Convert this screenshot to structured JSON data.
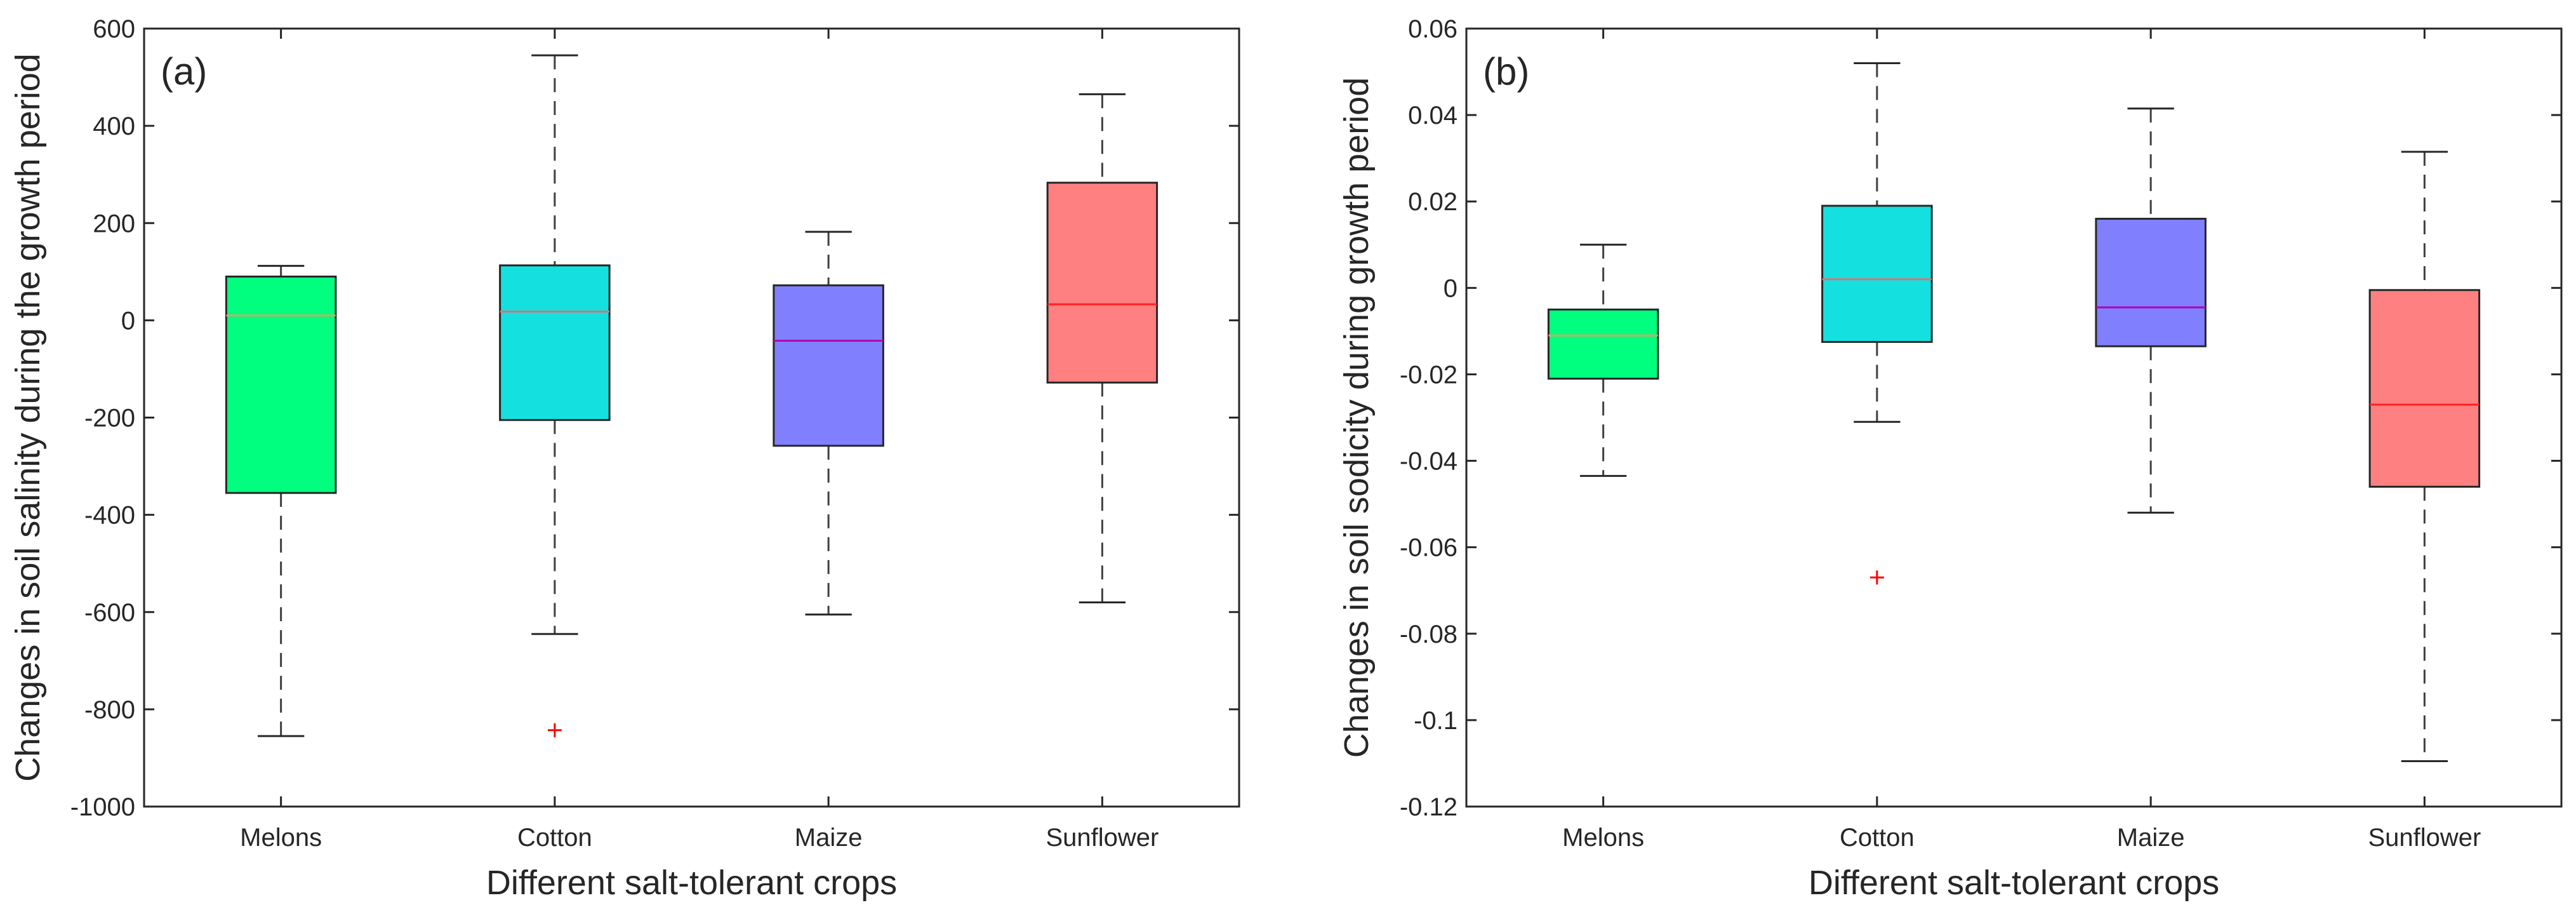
{
  "chart_data": [
    {
      "type": "boxplot",
      "panel_label": "(a)",
      "xlabel": "Different salt-tolerant crops",
      "ylabel": "Changes in soil salinity during the growth period",
      "ylim": [
        -1000,
        600
      ],
      "yticks": [
        600,
        400,
        200,
        0,
        -200,
        -400,
        -600,
        -800,
        -1000
      ],
      "ytick_labels": [
        "600",
        "400",
        "200",
        "0",
        "-200",
        "-400",
        "-600",
        "-800",
        "-1000"
      ],
      "categories": [
        "Melons",
        "Cotton",
        "Maize",
        "Sunflower"
      ],
      "boxes": [
        {
          "name": "Melons",
          "whisker_low": -855,
          "q1": -355,
          "median": 10,
          "q3": 90,
          "whisker_high": 112,
          "outliers": [],
          "color": "#00ff7f",
          "median_color": "#e0a060"
        },
        {
          "name": "Cotton",
          "whisker_low": -645,
          "q1": -205,
          "median": 18,
          "q3": 113,
          "whisker_high": 545,
          "outliers": [
            -843
          ],
          "color": "#14e0e0",
          "median_color": "#e07070"
        },
        {
          "name": "Maize",
          "whisker_low": -605,
          "q1": -258,
          "median": -42,
          "q3": 72,
          "whisker_high": 182,
          "outliers": [],
          "color": "#8080ff",
          "median_color": "#b000b0"
        },
        {
          "name": "Sunflower",
          "whisker_low": -580,
          "q1": -128,
          "median": 33,
          "q3": 283,
          "whisker_high": 465,
          "outliers": [],
          "color": "#ff8080",
          "median_color": "#ff2020"
        }
      ]
    },
    {
      "type": "boxplot",
      "panel_label": "(b)",
      "xlabel": "Different salt-tolerant crops",
      "ylabel": "Changes in soil sodicity during growth period",
      "ylim": [
        -0.12,
        0.06
      ],
      "yticks": [
        0.06,
        0.04,
        0.02,
        0,
        -0.02,
        -0.04,
        -0.06,
        -0.08,
        -0.1,
        -0.12
      ],
      "ytick_labels": [
        "0.06",
        "0.04",
        "0.02",
        "0",
        "-0.02",
        "-0.04",
        "-0.06",
        "-0.08",
        "-0.1",
        "-0.12"
      ],
      "categories": [
        "Melons",
        "Cotton",
        "Maize",
        "Sunflower"
      ],
      "boxes": [
        {
          "name": "Melons",
          "whisker_low": -0.0435,
          "q1": -0.021,
          "median": -0.011,
          "q3": -0.005,
          "whisker_high": 0.01,
          "outliers": [],
          "color": "#00ff7f",
          "median_color": "#e0a060"
        },
        {
          "name": "Cotton",
          "whisker_low": -0.031,
          "q1": -0.0125,
          "median": 0.002,
          "q3": 0.019,
          "whisker_high": 0.052,
          "outliers": [
            -0.067
          ],
          "color": "#14e0e0",
          "median_color": "#e07070"
        },
        {
          "name": "Maize",
          "whisker_low": -0.052,
          "q1": -0.0135,
          "median": -0.0045,
          "q3": 0.016,
          "whisker_high": 0.0415,
          "outliers": [],
          "color": "#8080ff",
          "median_color": "#b000b0"
        },
        {
          "name": "Sunflower",
          "whisker_low": -0.1095,
          "q1": -0.046,
          "median": -0.027,
          "q3": -0.0005,
          "whisker_high": 0.0315,
          "outliers": [],
          "color": "#ff8080",
          "median_color": "#ff2020"
        }
      ]
    }
  ]
}
